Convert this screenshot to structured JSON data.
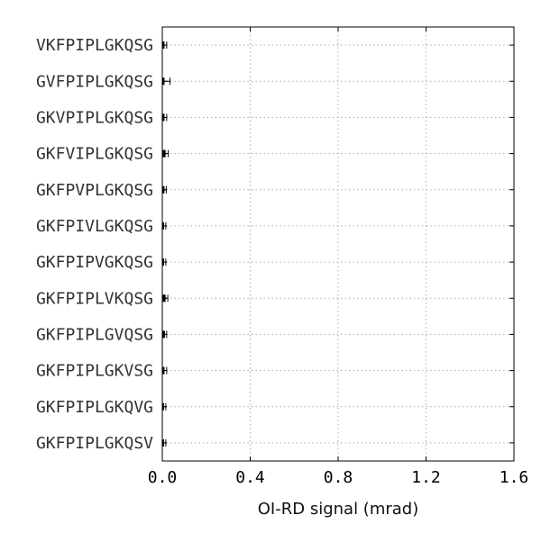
{
  "chart_data": {
    "type": "bar",
    "orientation": "horizontal",
    "title": "",
    "xlabel": "OI-RD signal (mrad)",
    "ylabel": "",
    "xlim": [
      0.0,
      1.6
    ],
    "xticks": [
      "0.0",
      "0.4",
      "0.8",
      "1.2",
      "1.6"
    ],
    "grid": true,
    "categories": [
      "VKFPIPLGKQSG",
      "GVFPIPLGKQSG",
      "GKVPIPLGKQSG",
      "GKFVIPLGKQSG",
      "GKFPVPLGKQSG",
      "GKFPIVLGKQSG",
      "GKFPIPVGKQSG",
      "GKFPIPLVKQSG",
      "GKFPIPLGVQSG",
      "GKFPIPLGKVSG",
      "GKFPIPLGKQVG",
      "GKFPIPLGKQSV"
    ],
    "values": [
      0.01,
      0.01,
      0.01,
      0.015,
      0.01,
      0.008,
      0.008,
      0.015,
      0.012,
      0.01,
      0.008,
      0.008
    ],
    "errors": [
      0.01,
      0.025,
      0.01,
      0.012,
      0.008,
      0.008,
      0.008,
      0.01,
      0.008,
      0.01,
      0.008,
      0.008
    ],
    "colors": {
      "bar": "#000000",
      "grid": "#aaaaaa",
      "axis": "#000000"
    }
  }
}
